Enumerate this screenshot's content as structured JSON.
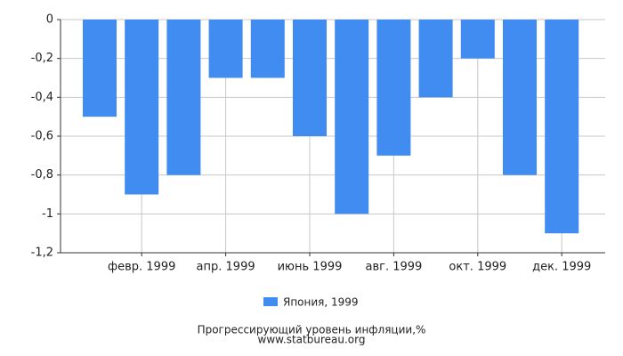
{
  "chart_data": {
    "type": "bar",
    "title": "Прогрессирующий уровень инфляции,%",
    "source": "www.statbureau.org",
    "categories": [
      null,
      "февр. 1999",
      null,
      "апр. 1999",
      null,
      "июнь 1999",
      null,
      "авг. 1999",
      null,
      "окт. 1999",
      null,
      "дек. 1999"
    ],
    "series": [
      {
        "name": "Япония, 1999",
        "color": "#418cf0",
        "values": [
          -0.5,
          -0.9,
          -0.8,
          -0.3,
          -0.3,
          -0.6,
          -1.0,
          -0.7,
          -0.4,
          -0.2,
          -0.8,
          -1.1
        ]
      }
    ],
    "ylim": [
      -1.2,
      0
    ],
    "yticks": [
      0,
      {
        "value": -0.2,
        "label": "-0,2"
      },
      {
        "value": -0.4,
        "label": "-0,4"
      },
      {
        "value": -0.6,
        "label": "-0,6"
      },
      {
        "value": -0.8,
        "label": "-0,8"
      },
      -1,
      {
        "value": -1.2,
        "label": "-1,2"
      }
    ],
    "grid": true
  }
}
